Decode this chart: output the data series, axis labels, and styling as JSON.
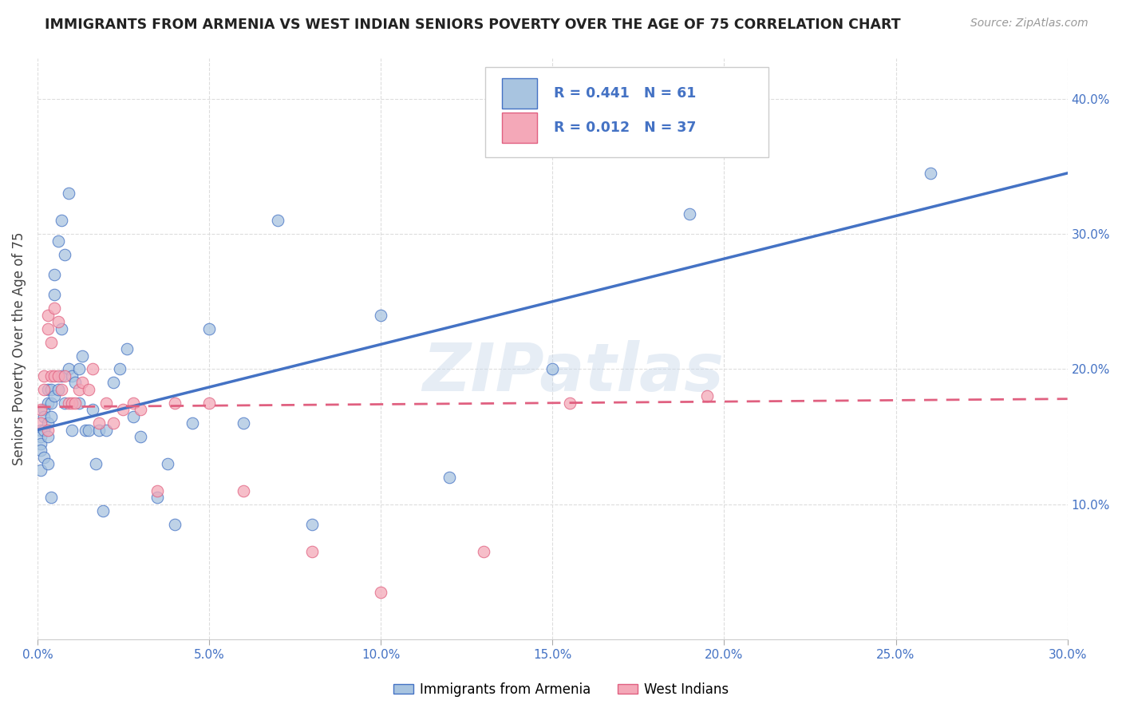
{
  "title": "IMMIGRANTS FROM ARMENIA VS WEST INDIAN SENIORS POVERTY OVER THE AGE OF 75 CORRELATION CHART",
  "source": "Source: ZipAtlas.com",
  "ylabel": "Seniors Poverty Over the Age of 75",
  "xlim": [
    0.0,
    0.3
  ],
  "ylim": [
    0.0,
    0.43
  ],
  "xticks": [
    0.0,
    0.05,
    0.1,
    0.15,
    0.2,
    0.25,
    0.3
  ],
  "yticks": [
    0.1,
    0.2,
    0.3,
    0.4
  ],
  "ytick_labels": [
    "10.0%",
    "20.0%",
    "30.0%",
    "40.0%"
  ],
  "xtick_labels": [
    "0.0%",
    "5.0%",
    "10.0%",
    "15.0%",
    "20.0%",
    "25.0%",
    "30.0%"
  ],
  "legend_label1": "Immigrants from Armenia",
  "legend_label2": "West Indians",
  "R1": 0.441,
  "N1": 61,
  "R2": 0.012,
  "N2": 37,
  "color1": "#a8c4e0",
  "color2": "#f4a8b8",
  "line_color1": "#4472c4",
  "line_color2": "#e06080",
  "background_color": "#ffffff",
  "grid_color": "#dddddd",
  "watermark": "ZIPatlas",
  "armenia_x": [
    0.001,
    0.001,
    0.001,
    0.001,
    0.001,
    0.002,
    0.002,
    0.002,
    0.002,
    0.003,
    0.003,
    0.003,
    0.003,
    0.003,
    0.004,
    0.004,
    0.004,
    0.004,
    0.005,
    0.005,
    0.005,
    0.006,
    0.006,
    0.007,
    0.007,
    0.007,
    0.008,
    0.008,
    0.009,
    0.009,
    0.01,
    0.01,
    0.011,
    0.012,
    0.012,
    0.013,
    0.014,
    0.015,
    0.016,
    0.017,
    0.018,
    0.019,
    0.02,
    0.022,
    0.024,
    0.026,
    0.028,
    0.03,
    0.035,
    0.038,
    0.04,
    0.045,
    0.05,
    0.06,
    0.07,
    0.08,
    0.1,
    0.12,
    0.15,
    0.19,
    0.26
  ],
  "armenia_y": [
    0.155,
    0.15,
    0.145,
    0.14,
    0.125,
    0.17,
    0.165,
    0.155,
    0.135,
    0.185,
    0.175,
    0.16,
    0.15,
    0.13,
    0.185,
    0.175,
    0.165,
    0.105,
    0.27,
    0.255,
    0.18,
    0.295,
    0.185,
    0.31,
    0.23,
    0.195,
    0.285,
    0.175,
    0.33,
    0.2,
    0.195,
    0.155,
    0.19,
    0.2,
    0.175,
    0.21,
    0.155,
    0.155,
    0.17,
    0.13,
    0.155,
    0.095,
    0.155,
    0.19,
    0.2,
    0.215,
    0.165,
    0.15,
    0.105,
    0.13,
    0.085,
    0.16,
    0.23,
    0.16,
    0.31,
    0.085,
    0.24,
    0.12,
    0.2,
    0.315,
    0.345
  ],
  "westindian_x": [
    0.001,
    0.001,
    0.002,
    0.002,
    0.003,
    0.003,
    0.003,
    0.004,
    0.004,
    0.005,
    0.005,
    0.006,
    0.006,
    0.007,
    0.008,
    0.009,
    0.01,
    0.011,
    0.012,
    0.013,
    0.015,
    0.016,
    0.018,
    0.02,
    0.022,
    0.025,
    0.028,
    0.03,
    0.035,
    0.04,
    0.05,
    0.06,
    0.08,
    0.1,
    0.13,
    0.155,
    0.195
  ],
  "westindian_y": [
    0.17,
    0.16,
    0.195,
    0.185,
    0.24,
    0.23,
    0.155,
    0.22,
    0.195,
    0.245,
    0.195,
    0.235,
    0.195,
    0.185,
    0.195,
    0.175,
    0.175,
    0.175,
    0.185,
    0.19,
    0.185,
    0.2,
    0.16,
    0.175,
    0.16,
    0.17,
    0.175,
    0.17,
    0.11,
    0.175,
    0.175,
    0.11,
    0.065,
    0.035,
    0.065,
    0.175,
    0.18
  ],
  "line1_x0": 0.0,
  "line1_y0": 0.155,
  "line1_x1": 0.3,
  "line1_y1": 0.345,
  "line2_x0": 0.0,
  "line2_y0": 0.172,
  "line2_x1": 0.3,
  "line2_y1": 0.178
}
